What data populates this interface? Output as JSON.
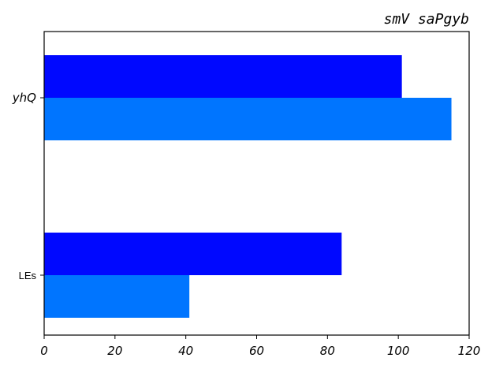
{
  "chart_data": {
    "type": "bar",
    "orientation": "horizontal",
    "title": "smV saPgyb",
    "categories": [
      "yhQ",
      "LEs"
    ],
    "series": [
      {
        "values": [
          101,
          84
        ],
        "color": "#0008ff"
      },
      {
        "values": [
          115,
          41
        ],
        "color": "#0075ff"
      }
    ],
    "xlim": [
      0,
      120
    ],
    "xticks": [
      0,
      20,
      40,
      60,
      80,
      100,
      120
    ],
    "grid": false,
    "legend": "none"
  }
}
